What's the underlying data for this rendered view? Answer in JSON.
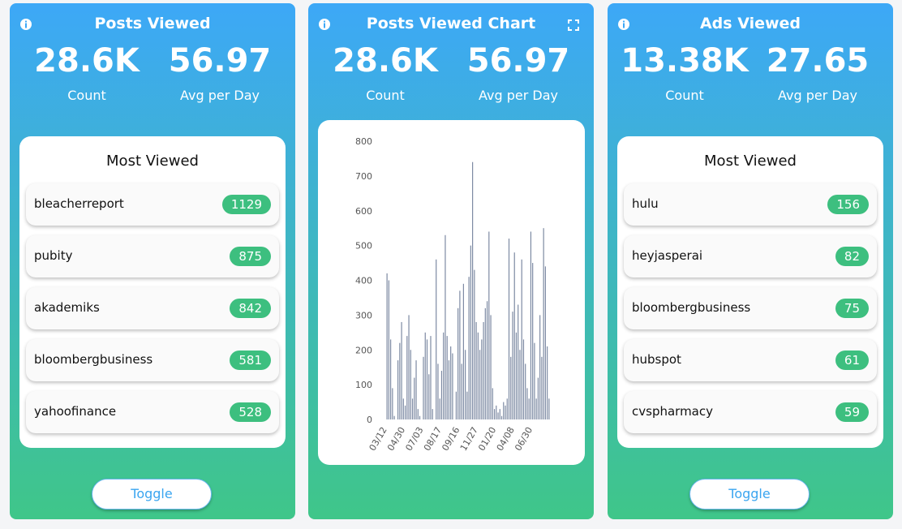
{
  "cards": [
    {
      "title": "Posts Viewed",
      "stats": [
        {
          "value": "28.6K",
          "label": "Count"
        },
        {
          "value": "56.97",
          "label": "Avg per Day"
        }
      ],
      "list_title": "Most Viewed",
      "items": [
        {
          "name": "bleacherreport",
          "count": 1129
        },
        {
          "name": "pubity",
          "count": 875
        },
        {
          "name": "akademiks",
          "count": 842
        },
        {
          "name": "bloombergbusiness",
          "count": 581
        },
        {
          "name": "yahoofinance",
          "count": 528
        }
      ],
      "button": "Toggle"
    },
    {
      "title": "Posts Viewed Chart",
      "stats": [
        {
          "value": "28.6K",
          "label": "Count"
        },
        {
          "value": "56.97",
          "label": "Avg per Day"
        }
      ]
    },
    {
      "title": "Ads Viewed",
      "stats": [
        {
          "value": "13.38K",
          "label": "Count"
        },
        {
          "value": "27.65",
          "label": "Avg per Day"
        }
      ],
      "list_title": "Most Viewed",
      "items": [
        {
          "name": "hulu",
          "count": 156
        },
        {
          "name": "heyjasperai",
          "count": 82
        },
        {
          "name": "bloombergbusiness",
          "count": 75
        },
        {
          "name": "hubspot",
          "count": 61
        },
        {
          "name": "cvspharmacy",
          "count": 59
        }
      ],
      "button": "Toggle"
    }
  ],
  "chart_data": {
    "type": "bar",
    "color": "#7d8aa3",
    "categories": [
      "03/12",
      null,
      null,
      null,
      null,
      null,
      null,
      null,
      null,
      null,
      "04/30",
      null,
      null,
      null,
      null,
      null,
      null,
      null,
      null,
      null,
      "07/03",
      null,
      null,
      null,
      null,
      null,
      null,
      null,
      null,
      null,
      "08/17",
      null,
      null,
      null,
      null,
      null,
      null,
      null,
      null,
      null,
      "09/16",
      null,
      null,
      null,
      null,
      null,
      null,
      null,
      null,
      null,
      "11/27",
      null,
      null,
      null,
      null,
      null,
      null,
      null,
      null,
      null,
      "01/20",
      null,
      null,
      null,
      null,
      null,
      null,
      null,
      null,
      null,
      "04/08",
      null,
      null,
      null,
      null,
      null,
      null,
      null,
      null,
      null,
      "06/30",
      null,
      null,
      null,
      null,
      null,
      null,
      null,
      null,
      null
    ],
    "values": [
      420,
      400,
      230,
      90,
      10,
      0,
      170,
      220,
      280,
      60,
      40,
      240,
      300,
      200,
      60,
      120,
      170,
      30,
      10,
      0,
      180,
      250,
      230,
      130,
      240,
      30,
      0,
      460,
      160,
      60,
      140,
      250,
      530,
      240,
      170,
      210,
      190,
      0,
      80,
      320,
      370,
      160,
      390,
      200,
      80,
      410,
      500,
      740,
      430,
      280,
      250,
      200,
      230,
      280,
      320,
      340,
      540,
      300,
      90,
      30,
      40,
      20,
      30,
      10,
      50,
      40,
      60,
      520,
      180,
      310,
      480,
      250,
      330,
      200,
      460,
      230,
      160,
      90,
      60,
      540,
      450,
      220,
      60,
      120,
      300,
      180,
      550,
      440,
      210,
      60
    ],
    "ylim": [
      0,
      800
    ],
    "yticks": [
      0,
      100,
      200,
      300,
      400,
      500,
      600,
      700,
      800
    ]
  }
}
